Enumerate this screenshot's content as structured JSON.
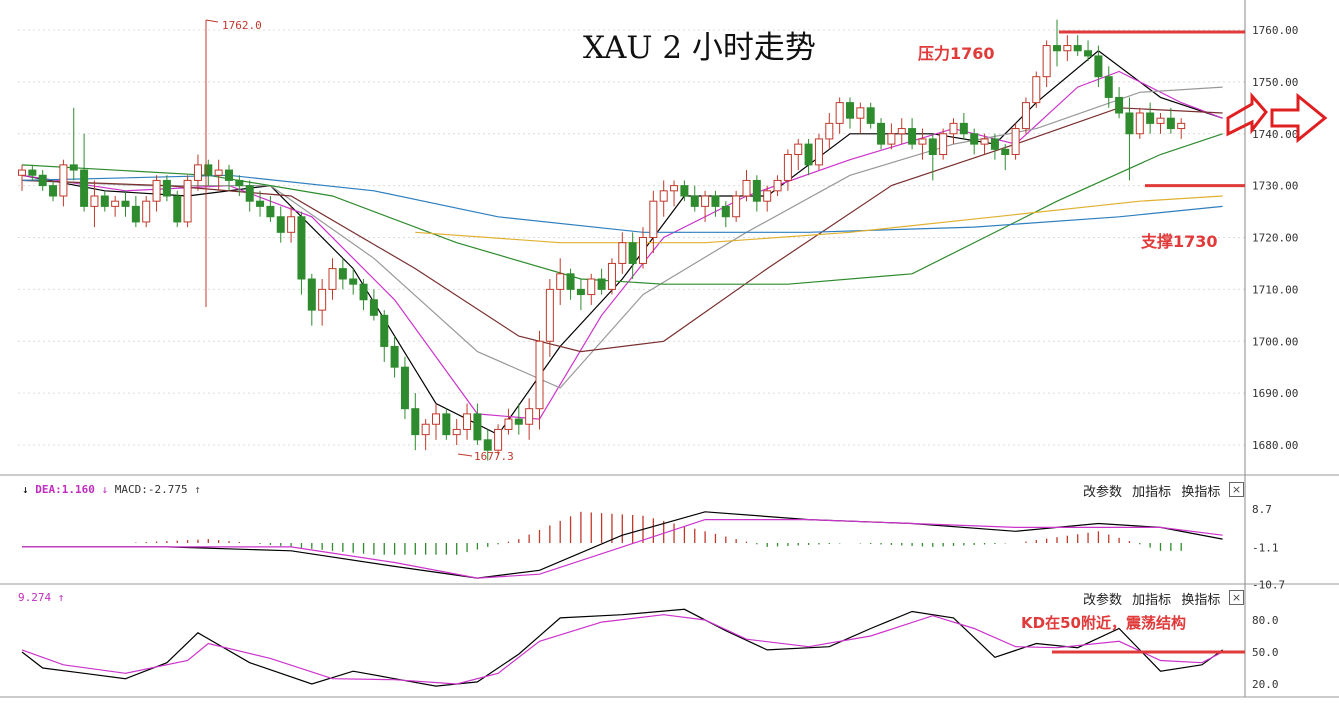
{
  "title": "XAU 2 小时走势",
  "annotations": {
    "resistance": "压力1760",
    "support": "支撑1730",
    "kd_note": "KD在50附近，震荡结构",
    "high_marker": "1762.0",
    "low_marker": "1677.3"
  },
  "macd_panel": {
    "dea_label": "DEA:1.160",
    "macd_label": "MACD:-2.775",
    "controls": [
      "改参数",
      "加指标",
      "换指标"
    ],
    "ticks": [
      "8.7",
      "-1.1",
      "-10.7"
    ]
  },
  "kd_panel": {
    "value_label": "9.274",
    "controls": [
      "改参数",
      "加指标",
      "换指标"
    ],
    "ticks": [
      "80.0",
      "50.0",
      "20.0"
    ]
  },
  "colors": {
    "up": "#c0392b",
    "down": "#2e8b2e",
    "ma5": "#000000",
    "ma10": "#cc33cc",
    "ma20": "#999999",
    "ma30": "#7a2e2e",
    "ma60": "#2e8b2e",
    "ma120": "#2e7fbf",
    "ma250": "#e0b030",
    "level": "#e03a3a",
    "arrow": "#e02020"
  },
  "chart_data": {
    "type": "candlestick",
    "title": "XAU 2 小时走势",
    "price_ticks": [
      "1760.00",
      "1750.00",
      "1740.00",
      "1730.00",
      "1720.00",
      "1710.00",
      "1700.00",
      "1690.00",
      "1680.00"
    ],
    "y_range": [
      1675,
      1764
    ],
    "levels": {
      "resistance": 1760,
      "support": 1730
    },
    "high": 1762.0,
    "low": 1677.3,
    "candles": [
      [
        1732,
        1734,
        1729,
        1733
      ],
      [
        1733,
        1734,
        1731,
        1732
      ],
      [
        1732,
        1733,
        1729,
        1730
      ],
      [
        1730,
        1731,
        1727,
        1728
      ],
      [
        1728,
        1735,
        1726,
        1734
      ],
      [
        1734,
        1745,
        1731,
        1733
      ],
      [
        1733,
        1740,
        1725,
        1726
      ],
      [
        1726,
        1731,
        1722,
        1728
      ],
      [
        1728,
        1729,
        1725,
        1726
      ],
      [
        1726,
        1728,
        1724,
        1727
      ],
      [
        1727,
        1729,
        1724,
        1726
      ],
      [
        1726,
        1728,
        1722,
        1723
      ],
      [
        1723,
        1728,
        1722,
        1727
      ],
      [
        1727,
        1732,
        1725,
        1731
      ],
      [
        1731,
        1732,
        1727,
        1728
      ],
      [
        1728,
        1729,
        1722,
        1723
      ],
      [
        1723,
        1732,
        1722,
        1731
      ],
      [
        1731,
        1736,
        1729,
        1734
      ],
      [
        1734,
        1735,
        1730,
        1732
      ],
      [
        1732,
        1735,
        1729,
        1733
      ],
      [
        1733,
        1734,
        1729,
        1731
      ],
      [
        1731,
        1732,
        1728,
        1730
      ],
      [
        1730,
        1731,
        1725,
        1727
      ],
      [
        1727,
        1729,
        1724,
        1726
      ],
      [
        1726,
        1728,
        1723,
        1724
      ],
      [
        1724,
        1726,
        1719,
        1721
      ],
      [
        1721,
        1726,
        1719,
        1724
      ],
      [
        1724,
        1725,
        1709,
        1712
      ],
      [
        1712,
        1713,
        1703,
        1706
      ],
      [
        1706,
        1712,
        1703,
        1710
      ],
      [
        1710,
        1716,
        1708,
        1714
      ],
      [
        1714,
        1716,
        1710,
        1712
      ],
      [
        1712,
        1714,
        1709,
        1711
      ],
      [
        1711,
        1712,
        1706,
        1708
      ],
      [
        1708,
        1710,
        1704,
        1705
      ],
      [
        1705,
        1706,
        1696,
        1699
      ],
      [
        1699,
        1701,
        1693,
        1695
      ],
      [
        1695,
        1697,
        1685,
        1687
      ],
      [
        1687,
        1690,
        1679,
        1682
      ],
      [
        1682,
        1685,
        1679,
        1684
      ],
      [
        1684,
        1688,
        1681,
        1686
      ],
      [
        1686,
        1687,
        1681,
        1682
      ],
      [
        1682,
        1685,
        1680,
        1683
      ],
      [
        1683,
        1688,
        1681,
        1686
      ],
      [
        1686,
        1688,
        1680,
        1681
      ],
      [
        1681,
        1683,
        1677,
        1679
      ],
      [
        1679,
        1684,
        1678,
        1683
      ],
      [
        1683,
        1687,
        1682,
        1685
      ],
      [
        1685,
        1688,
        1682,
        1684
      ],
      [
        1684,
        1689,
        1681,
        1687
      ],
      [
        1687,
        1702,
        1683,
        1700
      ],
      [
        1700,
        1712,
        1697,
        1710
      ],
      [
        1710,
        1716,
        1707,
        1713
      ],
      [
        1713,
        1714,
        1708,
        1710
      ],
      [
        1710,
        1712,
        1706,
        1709
      ],
      [
        1709,
        1713,
        1707,
        1712
      ],
      [
        1712,
        1714,
        1709,
        1710
      ],
      [
        1710,
        1716,
        1709,
        1715
      ],
      [
        1715,
        1721,
        1713,
        1719
      ],
      [
        1719,
        1721,
        1712,
        1715
      ],
      [
        1715,
        1722,
        1714,
        1720
      ],
      [
        1720,
        1729,
        1717,
        1727
      ],
      [
        1727,
        1731,
        1724,
        1729
      ],
      [
        1729,
        1731,
        1726,
        1730
      ],
      [
        1730,
        1731,
        1727,
        1728
      ],
      [
        1728,
        1730,
        1725,
        1726
      ],
      [
        1726,
        1729,
        1723,
        1728
      ],
      [
        1728,
        1729,
        1724,
        1726
      ],
      [
        1726,
        1727,
        1722,
        1724
      ],
      [
        1724,
        1729,
        1723,
        1728
      ],
      [
        1728,
        1733,
        1727,
        1731
      ],
      [
        1731,
        1732,
        1725,
        1727
      ],
      [
        1727,
        1730,
        1725,
        1729
      ],
      [
        1729,
        1732,
        1728,
        1731
      ],
      [
        1731,
        1737,
        1729,
        1736
      ],
      [
        1736,
        1739,
        1733,
        1738
      ],
      [
        1738,
        1739,
        1732,
        1734
      ],
      [
        1734,
        1740,
        1733,
        1739
      ],
      [
        1739,
        1744,
        1737,
        1742
      ],
      [
        1742,
        1747,
        1740,
        1746
      ],
      [
        1746,
        1747,
        1741,
        1743
      ],
      [
        1743,
        1746,
        1740,
        1745
      ],
      [
        1745,
        1746,
        1741,
        1742
      ],
      [
        1742,
        1743,
        1737,
        1738
      ],
      [
        1738,
        1742,
        1737,
        1740
      ],
      [
        1740,
        1743,
        1738,
        1741
      ],
      [
        1741,
        1743,
        1737,
        1738
      ],
      [
        1738,
        1741,
        1735,
        1739
      ],
      [
        1739,
        1740,
        1731,
        1736
      ],
      [
        1736,
        1741,
        1735,
        1740
      ],
      [
        1740,
        1743,
        1738,
        1742
      ],
      [
        1742,
        1744,
        1739,
        1740
      ],
      [
        1740,
        1741,
        1736,
        1738
      ],
      [
        1738,
        1740,
        1736,
        1739
      ],
      [
        1739,
        1740,
        1735,
        1737
      ],
      [
        1737,
        1738,
        1733,
        1736
      ],
      [
        1736,
        1742,
        1735,
        1741
      ],
      [
        1741,
        1747,
        1740,
        1746
      ],
      [
        1746,
        1752,
        1745,
        1751
      ],
      [
        1751,
        1758,
        1749,
        1757
      ],
      [
        1757,
        1762,
        1753,
        1756
      ],
      [
        1756,
        1759,
        1754,
        1757
      ],
      [
        1757,
        1759,
        1755,
        1756
      ],
      [
        1756,
        1758,
        1754,
        1755
      ],
      [
        1755,
        1757,
        1749,
        1751
      ],
      [
        1751,
        1753,
        1745,
        1747
      ],
      [
        1747,
        1749,
        1743,
        1744
      ],
      [
        1744,
        1747,
        1731,
        1740
      ],
      [
        1740,
        1745,
        1739,
        1744
      ],
      [
        1744,
        1746,
        1740,
        1742
      ],
      [
        1742,
        1744,
        1740,
        1743
      ],
      [
        1743,
        1745,
        1740,
        1741
      ],
      [
        1741,
        1743,
        1739,
        1742
      ]
    ],
    "moving_averages": [
      {
        "values": [
          [
            0,
            1732
          ],
          [
            8,
            1729
          ],
          [
            16,
            1728
          ],
          [
            24,
            1730
          ],
          [
            32,
            1714
          ],
          [
            40,
            1688
          ],
          [
            46,
            1682
          ],
          [
            52,
            1699
          ],
          [
            58,
            1712
          ],
          [
            64,
            1728
          ],
          [
            72,
            1728
          ],
          [
            80,
            1740
          ],
          [
            88,
            1740
          ],
          [
            94,
            1738
          ],
          [
            98,
            1746
          ],
          [
            104,
            1756
          ],
          [
            110,
            1747
          ],
          [
            116,
            1743
          ]
        ]
      },
      {
        "values": [
          [
            0,
            1732
          ],
          [
            10,
            1729
          ],
          [
            20,
            1730
          ],
          [
            28,
            1724
          ],
          [
            36,
            1708
          ],
          [
            44,
            1686
          ],
          [
            50,
            1685
          ],
          [
            56,
            1705
          ],
          [
            62,
            1720
          ],
          [
            70,
            1728
          ],
          [
            80,
            1735
          ],
          [
            90,
            1741
          ],
          [
            96,
            1738
          ],
          [
            102,
            1749
          ],
          [
            106,
            1752
          ],
          [
            112,
            1746
          ],
          [
            116,
            1743
          ]
        ]
      },
      {
        "values": [
          [
            0,
            1731
          ],
          [
            12,
            1730
          ],
          [
            24,
            1730
          ],
          [
            34,
            1716
          ],
          [
            44,
            1698
          ],
          [
            52,
            1691
          ],
          [
            60,
            1709
          ],
          [
            70,
            1721
          ],
          [
            80,
            1732
          ],
          [
            90,
            1738
          ],
          [
            98,
            1741
          ],
          [
            108,
            1748
          ],
          [
            116,
            1749
          ]
        ]
      },
      {
        "values": [
          [
            0,
            1731
          ],
          [
            14,
            1730
          ],
          [
            26,
            1728
          ],
          [
            38,
            1714
          ],
          [
            48,
            1701
          ],
          [
            54,
            1698
          ],
          [
            62,
            1700
          ],
          [
            72,
            1714
          ],
          [
            84,
            1730
          ],
          [
            96,
            1738
          ],
          [
            106,
            1745
          ],
          [
            116,
            1744
          ]
        ]
      },
      {
        "values": [
          [
            0,
            1734
          ],
          [
            18,
            1732
          ],
          [
            30,
            1728
          ],
          [
            42,
            1719
          ],
          [
            54,
            1712
          ],
          [
            62,
            1711
          ],
          [
            74,
            1711
          ],
          [
            86,
            1713
          ],
          [
            100,
            1727
          ],
          [
            110,
            1736
          ],
          [
            116,
            1740
          ]
        ]
      },
      {
        "values": [
          [
            0,
            1731
          ],
          [
            20,
            1732
          ],
          [
            34,
            1729
          ],
          [
            46,
            1724
          ],
          [
            60,
            1721
          ],
          [
            76,
            1721
          ],
          [
            92,
            1722
          ],
          [
            106,
            1724
          ],
          [
            116,
            1726
          ]
        ]
      },
      {
        "values": [
          [
            38,
            1721
          ],
          [
            52,
            1719
          ],
          [
            66,
            1719
          ],
          [
            80,
            1721
          ],
          [
            94,
            1724
          ],
          [
            108,
            1727
          ],
          [
            116,
            1728
          ]
        ]
      }
    ],
    "macd": {
      "dif": [
        [
          0,
          -1
        ],
        [
          14,
          -1
        ],
        [
          26,
          -2
        ],
        [
          36,
          -6
        ],
        [
          44,
          -9
        ],
        [
          50,
          -7
        ],
        [
          58,
          2
        ],
        [
          66,
          8
        ],
        [
          76,
          6
        ],
        [
          86,
          5
        ],
        [
          96,
          3
        ],
        [
          104,
          5
        ],
        [
          110,
          4
        ],
        [
          116,
          1
        ]
      ],
      "dea": [
        [
          0,
          -1
        ],
        [
          14,
          -1
        ],
        [
          26,
          -1
        ],
        [
          36,
          -5
        ],
        [
          44,
          -9
        ],
        [
          50,
          -8
        ],
        [
          58,
          -1
        ],
        [
          66,
          6
        ],
        [
          76,
          6
        ],
        [
          86,
          5
        ],
        [
          96,
          4
        ],
        [
          104,
          4
        ],
        [
          110,
          4
        ],
        [
          116,
          2
        ]
      ],
      "hist": [
        [
          0,
          0
        ],
        [
          10,
          0
        ],
        [
          18,
          1
        ],
        [
          26,
          -1
        ],
        [
          34,
          -3
        ],
        [
          42,
          -3
        ],
        [
          48,
          1
        ],
        [
          54,
          8
        ],
        [
          60,
          7
        ],
        [
          66,
          3
        ],
        [
          72,
          -1
        ],
        [
          80,
          0
        ],
        [
          88,
          -1
        ],
        [
          96,
          0
        ],
        [
          104,
          3
        ],
        [
          110,
          -2
        ],
        [
          116,
          -2
        ]
      ]
    },
    "kd": {
      "k": [
        [
          0,
          50
        ],
        [
          2,
          35
        ],
        [
          6,
          30
        ],
        [
          10,
          25
        ],
        [
          14,
          40
        ],
        [
          17,
          68
        ],
        [
          22,
          40
        ],
        [
          28,
          20
        ],
        [
          32,
          32
        ],
        [
          36,
          25
        ],
        [
          40,
          18
        ],
        [
          44,
          22
        ],
        [
          48,
          48
        ],
        [
          52,
          82
        ],
        [
          58,
          85
        ],
        [
          64,
          90
        ],
        [
          68,
          70
        ],
        [
          72,
          52
        ],
        [
          78,
          55
        ],
        [
          82,
          72
        ],
        [
          86,
          88
        ],
        [
          90,
          82
        ],
        [
          94,
          45
        ],
        [
          98,
          58
        ],
        [
          102,
          54
        ],
        [
          106,
          72
        ],
        [
          110,
          32
        ],
        [
          114,
          38
        ],
        [
          116,
          52
        ]
      ],
      "d": [
        [
          0,
          52
        ],
        [
          4,
          38
        ],
        [
          10,
          30
        ],
        [
          16,
          42
        ],
        [
          18,
          58
        ],
        [
          24,
          44
        ],
        [
          30,
          25
        ],
        [
          36,
          24
        ],
        [
          42,
          20
        ],
        [
          46,
          30
        ],
        [
          50,
          60
        ],
        [
          56,
          78
        ],
        [
          62,
          85
        ],
        [
          66,
          80
        ],
        [
          70,
          62
        ],
        [
          76,
          55
        ],
        [
          82,
          65
        ],
        [
          88,
          84
        ],
        [
          92,
          72
        ],
        [
          96,
          55
        ],
        [
          100,
          54
        ],
        [
          106,
          60
        ],
        [
          110,
          42
        ],
        [
          114,
          40
        ],
        [
          116,
          50
        ]
      ]
    }
  }
}
